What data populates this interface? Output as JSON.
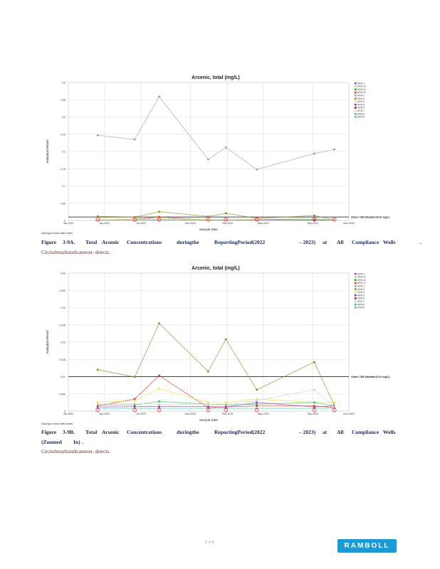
{
  "chart_data": [
    {
      "type": "line",
      "title": "Arsenic, total (mg/L)",
      "xlabel": "Sample Date",
      "ylabel": "Analytical Result",
      "ylim": [
        0,
        0.4
      ],
      "yticks": [
        "0",
        "0.05",
        "0.1",
        "0.15",
        "0.2",
        "0.25",
        "0.3",
        "0.35",
        "0.4"
      ],
      "xlim": [
        "2022-01-01",
        "2023-11-30"
      ],
      "xticks": [
        {
          "date": "2022-01-01",
          "label": "Jan-2022"
        },
        {
          "date": "2022-04-01",
          "label": "Apr-2022"
        },
        {
          "date": "2022-07-01",
          "label": "Jul-2022"
        },
        {
          "date": "2022-11-01",
          "label": "Nov-2022"
        },
        {
          "date": "2023-02-01",
          "label": "Feb-2023"
        },
        {
          "date": "2023-05-01",
          "label": "May-2023"
        },
        {
          "date": "2023-09-01",
          "label": "Sep-2023"
        },
        {
          "date": "2023-11-30",
          "label": "Nov-2023"
        }
      ],
      "standard": {
        "value": 0.01,
        "label": "Class I GW Standard (0.01 mg/L)"
      },
      "grid": true,
      "legend_position": "right"
    },
    {
      "type": "line",
      "title": "Arsenic, total (mg/L)",
      "xlabel": "Sample Date",
      "ylabel": "Analytical Result",
      "ylim": [
        0,
        0.04
      ],
      "yticks": [
        "0",
        "0.005",
        "0.01",
        "0.015",
        "0.02",
        "0.025",
        "0.03",
        "0.035",
        "0.04"
      ],
      "xlim": [
        "2022-01-01",
        "2023-11-30"
      ],
      "xticks": [
        {
          "date": "2022-01-01",
          "label": "Jan-2022"
        },
        {
          "date": "2022-04-01",
          "label": "Apr-2022"
        },
        {
          "date": "2022-07-01",
          "label": "Jul-2022"
        },
        {
          "date": "2022-11-01",
          "label": "Nov-2022"
        },
        {
          "date": "2023-02-01",
          "label": "Feb-2023"
        },
        {
          "date": "2023-05-01",
          "label": "May-2023"
        },
        {
          "date": "2023-09-01",
          "label": "Sep-2023"
        },
        {
          "date": "2023-11-30",
          "label": "Nov-2023"
        }
      ],
      "standard": {
        "value": 0.01,
        "label": "Class I GW Standard (0.01 mg/L)"
      },
      "grid": true,
      "legend_position": "right"
    }
  ],
  "sample_dates": [
    "2022-03-15",
    "2022-06-15",
    "2022-08-15",
    "2022-12-15",
    "2023-01-28",
    "2023-04-15",
    "2023-09-05",
    "2023-10-25"
  ],
  "legend": [
    {
      "name": "APW-1",
      "color": "#9040b0"
    },
    {
      "name": "APW-10",
      "color": "#c8c090"
    },
    {
      "name": "APW-11",
      "color": "#30a030"
    },
    {
      "name": "APW-12",
      "color": "#e03030"
    },
    {
      "name": "APW-2",
      "color": "#a0a0a0"
    },
    {
      "name": "APW-3",
      "color": "#8b8b2a"
    },
    {
      "name": "APW-4",
      "color": "#f0e040"
    },
    {
      "name": "APW-5",
      "color": "#7030a0"
    },
    {
      "name": "APW-6",
      "color": "#802020"
    },
    {
      "name": "APW-7",
      "color": "#d0d0d0"
    },
    {
      "name": "APW-8",
      "color": "#30c060"
    },
    {
      "name": "APW-9",
      "color": "#30c0c0"
    }
  ],
  "series": [
    {
      "legend": "APW-2",
      "values": [
        0.247,
        0.235,
        0.359,
        0.177,
        0.212,
        0.148,
        0.194,
        0.206
      ]
    },
    {
      "legend": "APW-3",
      "values": [
        0.012,
        0.0099,
        0.0254,
        0.0115,
        0.0208,
        0.0062,
        0.0142,
        0.0016
      ]
    },
    {
      "legend": "APW-12",
      "values": [
        0.0015,
        0.0035,
        0.0103,
        0.001,
        0.0012,
        0.0015,
        0.0015,
        0.001
      ]
    },
    {
      "legend": "APW-4",
      "values": [
        0.0025,
        0.003,
        0.0065,
        0.0025,
        0.0025,
        0.0035,
        0.0025,
        0.0025
      ]
    },
    {
      "legend": "APW-8",
      "values": [
        0.0018,
        0.0018,
        0.0028,
        0.002,
        0.0018,
        0.002,
        0.0025,
        0.0015
      ]
    },
    {
      "legend": "APW-9",
      "values": [
        0.0008,
        0.0008,
        0.0008,
        0.0008,
        0.0008,
        0.0008,
        0.0008,
        0.0008
      ]
    },
    {
      "legend": "APW-1",
      "values": [
        0.0012,
        0.0013,
        0.0013,
        0.0013,
        0.0012,
        0.0025,
        0.0012,
        0.0015
      ]
    },
    {
      "legend": "APW-7",
      "values": [
        0.002,
        0.0022,
        0.002,
        0.002,
        0.002,
        0.003,
        0.0062,
        0.0014
      ]
    }
  ],
  "non_detect_color": "#ff2020",
  "figure_a": {
    "words": [
      "Figure",
      "3-9A.",
      "Total",
      "Arsenic",
      "Concentrations",
      "duringthe",
      "ReportingPeriod(2022",
      "– 2023)",
      "at",
      "All",
      "Compliance",
      "Wells",
      "."
    ],
    "note": [
      "Circled",
      "results",
      "indicate",
      "non",
      "- detects."
    ],
    "footnote": "Data type shown after Dates"
  },
  "figure_b": {
    "words": [
      "Figure",
      "3-9B.",
      "Total",
      "Arsenic",
      "Concentrations",
      "duringthe",
      "ReportingPeriod(2022",
      "– 2023)",
      "at",
      "All",
      "Compliance",
      "Wells"
    ],
    "line2": [
      "(Zoomed",
      "In)",
      "."
    ],
    "note": [
      "Circled",
      "results",
      "indicate",
      "non",
      "- detects."
    ],
    "footnote": "Data type shown after Dates"
  },
  "footer": {
    "page": "5 of 8",
    "logo": "RAMBOLL"
  }
}
